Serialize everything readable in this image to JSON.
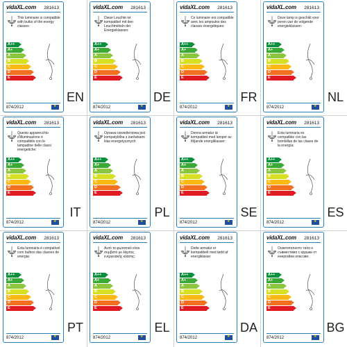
{
  "brand": "vidaXL.com",
  "product_code": "281613",
  "regulation": "874/2012",
  "energy_classes": [
    "A++",
    "A+",
    "A",
    "B",
    "C",
    "D",
    "E"
  ],
  "class_colors": [
    "#0a8f3c",
    "#3aa935",
    "#8cc63f",
    "#d7df23",
    "#fcb913",
    "#f37021",
    "#e01a22"
  ],
  "labels": [
    {
      "lang": "EN",
      "text": "This luminaire is compatible with bulbs of the energy classes:"
    },
    {
      "lang": "DE",
      "text": "Diese Leuchte ist kompatibel mit den Leuchtmitteln der Energieklassen:"
    },
    {
      "lang": "FR",
      "text": "Ce luminaire est compatible avec les ampoules des classes énergétiques:"
    },
    {
      "lang": "NL",
      "text": "Deze lamp is geschikt voor peren van de volgende energieklassen:"
    },
    {
      "lang": "IT",
      "text": "Questo apparecchio d'illuminazione è compatibile con le lampadine delle classi energetiche:"
    },
    {
      "lang": "PL",
      "text": "Oprawa oświetleniowa jest kompatybilna z żarówkami klas energetycznych:"
    },
    {
      "lang": "SE",
      "text": "Denna armatur är kompatibel med lampor av följande energiklasser:"
    },
    {
      "lang": "ES",
      "text": "Esta luminaria es compatible con las bombillas de las clases de la energía:"
    },
    {
      "lang": "PT",
      "text": "Esta luminária é compatível com bulbos das classes de energia:"
    },
    {
      "lang": "EL",
      "text": "Αυτό το φωτιστικό είναι συμβατό με λάμπες ενεργειακής κλάσης:"
    },
    {
      "lang": "DA",
      "text": "Dette armatur er kompatibelt med lødd af energiklasse:"
    },
    {
      "lang": "BG",
      "text": "Осветителното тяло е съвместимо с крушки от енергийни класове:"
    }
  ]
}
